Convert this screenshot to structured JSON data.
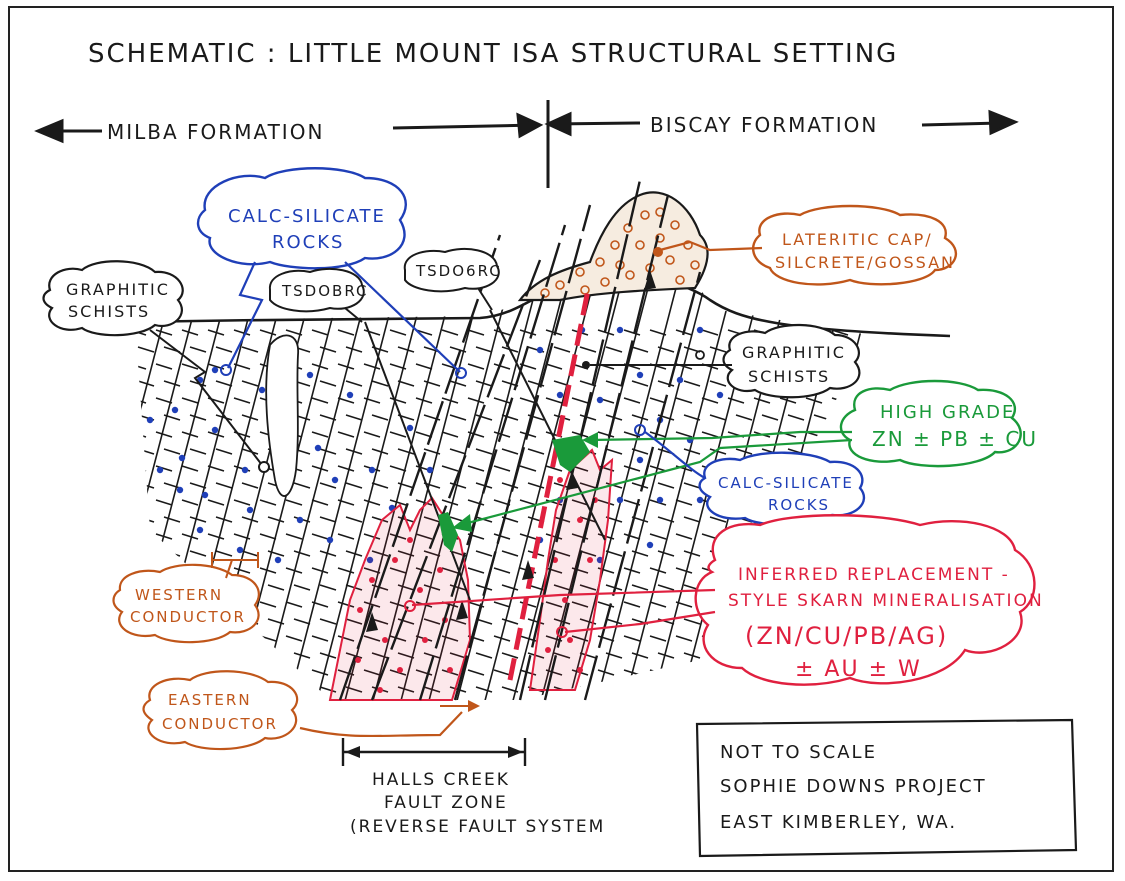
{
  "title": "SCHEMATIC : LITTLE MOUNT ISA STRUCTURAL SETTING",
  "formations": {
    "left": "MILBA FORMATION",
    "right": "BISCAY FORMATION"
  },
  "labels": {
    "calc_silicate_top": [
      "CALC-SILICATE",
      "ROCKS"
    ],
    "graphitic_left": [
      "GRAPHITIC",
      "SCHISTS"
    ],
    "drill_1": "TSDOBRC",
    "drill_2": "TSDO6RC",
    "lateritic": [
      "LATERITIC CAP/",
      "SILCRETE/GOSSAN"
    ],
    "graphitic_right": [
      "GRAPHITIC",
      "SCHISTS"
    ],
    "high_grade": [
      "HIGH GRADE",
      "ZN ± PB ± CU"
    ],
    "calc_silicate_right": [
      "CALC-SILICATE",
      "ROCKS"
    ],
    "skarn": [
      "INFERRED REPLACEMENT -",
      "STYLE SKARN MINERALISATION",
      "(ZN/CU/PB/AG)",
      "± AU ± W"
    ],
    "western_conductor": [
      "WESTERN",
      "CONDUCTOR"
    ],
    "eastern_conductor": [
      "EASTERN",
      "CONDUCTOR"
    ],
    "fault_zone": [
      "HALLS CREEK",
      "FAULT ZONE",
      "(REVERSE FAULT SYSTEM"
    ]
  },
  "note_box": [
    "NOT TO SCALE",
    "SOPHIE DOWNS PROJECT",
    "EAST KIMBERLEY, WA."
  ],
  "colors": {
    "ink": "#1a1a1a",
    "blue": "#1f3fb8",
    "orange": "#c0561a",
    "green": "#1a9a3a",
    "red": "#e0203f"
  }
}
